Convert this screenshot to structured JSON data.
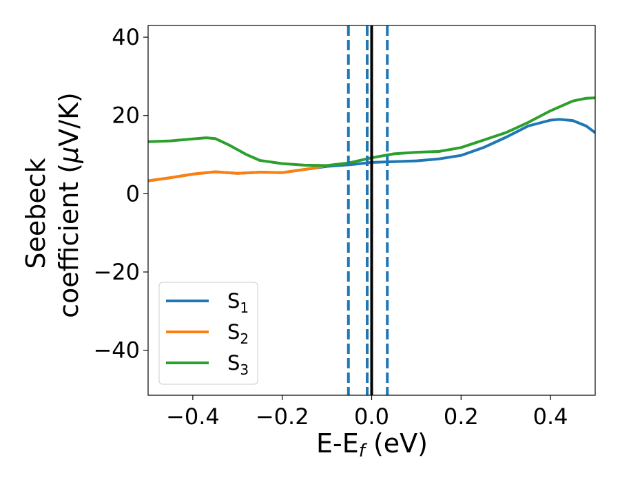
{
  "chart_data": {
    "type": "line",
    "xlabel": {
      "main": "E-E",
      "sub": "f",
      "unit": " (eV)"
    },
    "ylabel": {
      "line1": "Seebeck",
      "line2": "coefficient  (",
      "mu": "μ",
      "unit": "V/K)"
    },
    "xlim": [
      -0.5,
      0.5
    ],
    "ylim": [
      -51.5,
      43
    ],
    "xticks": [
      -0.4,
      -0.2,
      0.0,
      0.2,
      0.4
    ],
    "xtick_labels": [
      "−0.4",
      "−0.2",
      "0.0",
      "0.2",
      "0.4"
    ],
    "yticks": [
      40,
      20,
      0,
      -20,
      -40
    ],
    "ytick_labels": [
      "40",
      "20",
      "0",
      "−20",
      "−40"
    ],
    "grid": false,
    "legend_position": "lower-left",
    "series": [
      {
        "name": "S",
        "sub": "1",
        "color": "#1f77b4",
        "x": [
          -0.5,
          -0.45,
          -0.4,
          -0.35,
          -0.3,
          -0.25,
          -0.2,
          -0.15,
          -0.1,
          -0.05,
          0.0,
          0.05,
          0.1,
          0.15,
          0.2,
          0.25,
          0.3,
          0.35,
          0.4,
          0.42,
          0.45,
          0.48,
          0.5
        ],
        "y": [
          3.3,
          4.1,
          5.0,
          5.6,
          5.2,
          5.5,
          5.4,
          6.2,
          7.0,
          7.4,
          8.0,
          8.2,
          8.4,
          8.9,
          9.8,
          11.8,
          14.4,
          17.3,
          18.8,
          19.0,
          18.7,
          17.3,
          15.6
        ]
      },
      {
        "name": "S",
        "sub": "2",
        "color": "#ff7f0e",
        "x": [
          -0.5,
          -0.45,
          -0.4,
          -0.35,
          -0.3,
          -0.25,
          -0.2,
          -0.15,
          -0.11
        ],
        "y": [
          3.3,
          4.1,
          5.0,
          5.6,
          5.2,
          5.5,
          5.4,
          6.2,
          7.0
        ]
      },
      {
        "name": "S",
        "sub": "3",
        "color": "#2ca02c",
        "x": [
          -0.5,
          -0.45,
          -0.4,
          -0.37,
          -0.35,
          -0.32,
          -0.28,
          -0.25,
          -0.2,
          -0.15,
          -0.1,
          -0.05,
          0.0,
          0.05,
          0.1,
          0.15,
          0.2,
          0.25,
          0.3,
          0.35,
          0.4,
          0.45,
          0.48,
          0.5
        ],
        "y": [
          13.3,
          13.5,
          14.0,
          14.3,
          14.1,
          12.5,
          10.0,
          8.5,
          7.7,
          7.3,
          7.2,
          7.9,
          9.2,
          10.2,
          10.6,
          10.8,
          11.8,
          13.7,
          15.6,
          18.2,
          21.2,
          23.7,
          24.4,
          24.5
        ]
      }
    ],
    "vlines": [
      {
        "x": -0.052,
        "style": "dashed",
        "color": "#1f77b4"
      },
      {
        "x": -0.01,
        "style": "dashed",
        "color": "#1f77b4"
      },
      {
        "x": 0.035,
        "style": "dashed",
        "color": "#1f77b4"
      },
      {
        "x": 0.0,
        "style": "solid",
        "color": "#000000"
      }
    ]
  }
}
